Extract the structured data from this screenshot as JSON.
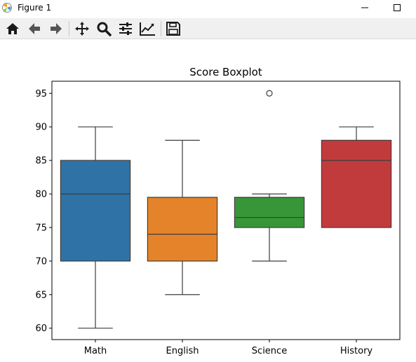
{
  "window": {
    "title": "Figure 1"
  },
  "toolbar": {
    "buttons": [
      {
        "name": "home-icon",
        "label": "Home"
      },
      {
        "name": "back-icon",
        "label": "Back"
      },
      {
        "name": "forward-icon",
        "label": "Forward"
      },
      {
        "name": "pan-icon",
        "label": "Pan"
      },
      {
        "name": "zoom-icon",
        "label": "Zoom"
      },
      {
        "name": "configure-subplots-icon",
        "label": "Subplots"
      },
      {
        "name": "edit-axis-icon",
        "label": "Customize"
      },
      {
        "name": "save-icon",
        "label": "Save"
      }
    ]
  },
  "colors": {
    "math": "#2f73a6",
    "english": "#e5832a",
    "science": "#379638",
    "history": "#c23b3c"
  },
  "chart_data": {
    "type": "boxplot",
    "title": "Score Boxplot",
    "xlabel": "",
    "ylabel": "",
    "categories": [
      "Math",
      "English",
      "Science",
      "History"
    ],
    "ylim": [
      58.3,
      96.8
    ],
    "yticks": [
      60,
      65,
      70,
      75,
      80,
      85,
      90,
      95
    ],
    "grid": false,
    "boxes": [
      {
        "category": "Math",
        "whisker_low": 60,
        "q1": 70,
        "median": 80,
        "q3": 85,
        "whisker_high": 90,
        "outliers": []
      },
      {
        "category": "English",
        "whisker_low": 65,
        "q1": 70,
        "median": 74,
        "q3": 79.5,
        "whisker_high": 88,
        "outliers": []
      },
      {
        "category": "Science",
        "whisker_low": 70,
        "q1": 75,
        "median": 76.5,
        "q3": 79.5,
        "whisker_high": 80,
        "outliers": [
          95
        ]
      },
      {
        "category": "History",
        "whisker_low": 75,
        "q1": 75,
        "median": 85,
        "q3": 88,
        "whisker_high": 90,
        "outliers": []
      }
    ]
  }
}
